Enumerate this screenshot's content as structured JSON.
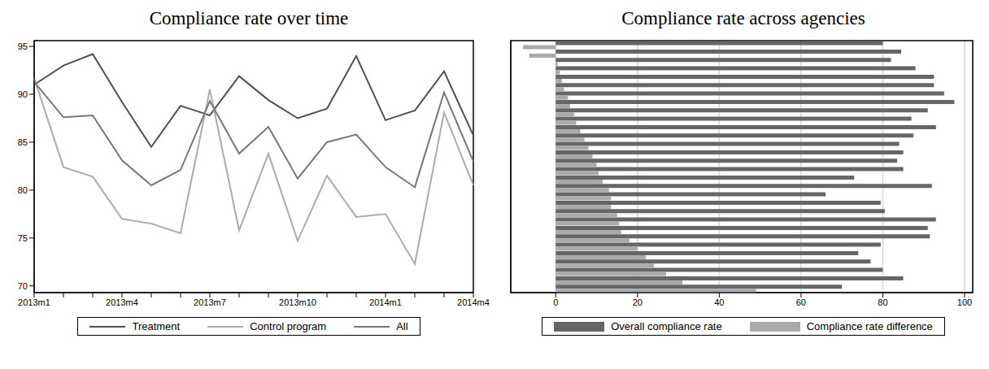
{
  "chart_data": [
    {
      "type": "line",
      "title": "Compliance rate over time",
      "categories": [
        "2013m1",
        null,
        null,
        "2013m4",
        null,
        null,
        "2013m7",
        null,
        null,
        "2013m10",
        null,
        null,
        "2014m1",
        null,
        null,
        "2014m4"
      ],
      "series": [
        {
          "name": "Treatment",
          "color": "#4f4f4f",
          "values": [
            91,
            93,
            94.2,
            89.2,
            84.5,
            88.8,
            87.8,
            91.9,
            89.4,
            87.5,
            88.5,
            94,
            87.3,
            88.3,
            92.4,
            85.7
          ]
        },
        {
          "name": "Control program",
          "color": "#ababab",
          "values": [
            91.7,
            82.4,
            81.4,
            77,
            76.5,
            75.5,
            90.5,
            75.8,
            83.8,
            74.7,
            81.5,
            77.2,
            77.5,
            72.3,
            88.1,
            80.5
          ]
        },
        {
          "name": "All",
          "color": "#777777",
          "values": [
            91.3,
            87.6,
            87.8,
            83.1,
            80.5,
            82.1,
            89.3,
            83.8,
            86.6,
            81.2,
            85,
            85.8,
            82.4,
            80.3,
            90.2,
            83
          ]
        }
      ],
      "ylim": [
        69.3,
        95.6
      ],
      "yticks": [
        70,
        75,
        80,
        85,
        90,
        95
      ],
      "grid": false
    },
    {
      "type": "bar",
      "title": "Compliance rate across agencies",
      "orientation": "horizontal",
      "tick_labels": "x",
      "categories": [
        null,
        null,
        null,
        null,
        null,
        null,
        null,
        null,
        null,
        null,
        null,
        null,
        null,
        null,
        null,
        null,
        null,
        null,
        null,
        null,
        null,
        null,
        null,
        null,
        null,
        null,
        null,
        null,
        null,
        null
      ],
      "series": [
        {
          "name": "Overall compliance rate",
          "color": "#666666",
          "values": [
            80,
            84.5,
            82,
            88,
            92.5,
            92.5,
            95,
            97.5,
            91,
            87,
            93,
            87.5,
            84,
            85,
            83.5,
            85,
            73,
            92,
            66,
            79.5,
            80.5,
            93,
            91,
            91.5,
            79.5,
            74,
            77,
            80,
            85,
            70
          ]
        },
        {
          "name": "Compliance rate difference",
          "color": "#aaaaaa",
          "values": [
            -8,
            -6.5,
            0.5,
            1,
            1.5,
            2,
            3,
            3.5,
            4.5,
            5,
            6,
            7,
            8,
            9,
            10,
            10.5,
            11.5,
            13,
            13.5,
            13.5,
            15,
            15.5,
            16,
            18,
            20,
            22,
            24,
            27,
            31,
            49
          ]
        }
      ],
      "xlim": [
        -11,
        102
      ],
      "xticks": [
        0,
        20,
        40,
        60,
        80,
        100
      ],
      "grid": true
    }
  ]
}
